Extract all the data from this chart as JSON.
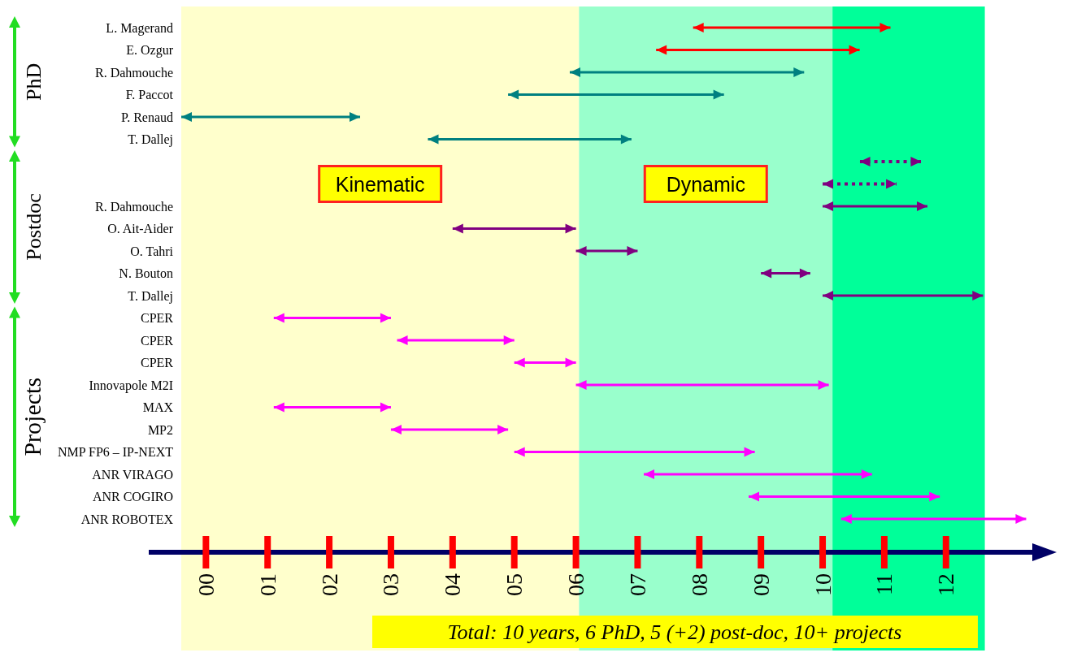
{
  "chart_data": {
    "type": "bar",
    "orientation": "horizontal",
    "categories": [
      "L. Magerand",
      "E. Ozgur",
      "R. Dahmouche",
      "F. Paccot",
      "P. Renaud",
      "T. Dallej",
      null,
      null,
      "R. Dahmouche",
      "O. Ait-Aider",
      "O. Tahri",
      "N. Bouton",
      "T. Dallej",
      "CPER",
      "CPER",
      "CPER",
      "Innovapole M2I",
      "MAX",
      "MP2",
      "NMP FP6 – IP-NEXT",
      "ANR VIRAGO",
      "ANR COGIRO",
      "ANR ROBOTEX"
    ],
    "series": [
      {
        "colors": [
          "#ff0000",
          "#ff0000",
          "#008080",
          "#008080",
          "#008080",
          "#008080",
          null,
          null,
          "#800080",
          "#800080",
          "#800080",
          "#800080",
          "#800080",
          "#ff00ff",
          "#ff00ff",
          "#ff00ff",
          "#ff00ff",
          "#ff00ff",
          "#ff00ff",
          "#ff00ff",
          "#ff00ff",
          "#ff00ff",
          "#ff00ff"
        ],
        "base": [
          7.9,
          7.3,
          5.9,
          4.9,
          -0.4,
          3.6,
          null,
          null,
          10.0,
          4.0,
          6.0,
          9.0,
          10.0,
          1.1,
          3.1,
          5.0,
          6.0,
          1.1,
          3.0,
          5.0,
          7.1,
          8.8,
          10.3
        ],
        "values": [
          3.2,
          3.3,
          3.8,
          3.5,
          2.9,
          3.3,
          null,
          null,
          1.7,
          2.0,
          1.0,
          0.8,
          2.6,
          1.9,
          1.9,
          1.0,
          4.1,
          1.9,
          1.9,
          3.9,
          3.7,
          3.1,
          3.0
        ]
      },
      {
        "color": "#800080",
        "line_style": "dotted",
        "base": [
          null,
          null,
          null,
          null,
          null,
          null,
          10.6,
          10.0,
          null,
          null,
          null,
          null,
          null,
          null,
          null,
          null,
          null,
          null,
          null,
          null,
          null,
          null,
          null
        ],
        "values": [
          null,
          null,
          null,
          null,
          null,
          null,
          1.0,
          1.2,
          null,
          null,
          null,
          null,
          null,
          null,
          null,
          null,
          null,
          null,
          null,
          null,
          null,
          null,
          null
        ]
      }
    ],
    "xlim": [
      -0.4,
      13.4
    ],
    "xticks": [
      {
        "value": 0,
        "label": "00"
      },
      {
        "value": 1,
        "label": "01"
      },
      {
        "value": 2,
        "label": "02"
      },
      {
        "value": 3,
        "label": "03"
      },
      {
        "value": 4,
        "label": "04"
      },
      {
        "value": 5,
        "label": "05"
      },
      {
        "value": 6,
        "label": "06"
      },
      {
        "value": 7,
        "label": "07"
      },
      {
        "value": 8,
        "label": "08"
      },
      {
        "value": 9,
        "label": "09"
      },
      {
        "value": 10,
        "label": "10"
      },
      {
        "value": 11,
        "label": "11"
      },
      {
        "value": 12,
        "label": "12"
      }
    ],
    "bands": [
      {
        "axis": "x",
        "from": -0.4,
        "to": 6.05,
        "label": "Kinematic",
        "color": "#ffffcc"
      },
      {
        "axis": "x",
        "from": 6.05,
        "to": 10.16,
        "label": "Dynamic",
        "color": "#99ffcc"
      },
      {
        "axis": "x",
        "from": 10.16,
        "to": 12.63,
        "color": "#00ff99"
      }
    ],
    "annotations": [
      "PhD",
      "Postdoc",
      "Projects",
      "Total: 10 years, 6 PhD, 5 (+2) post-doc, 10+ projects"
    ]
  }
}
